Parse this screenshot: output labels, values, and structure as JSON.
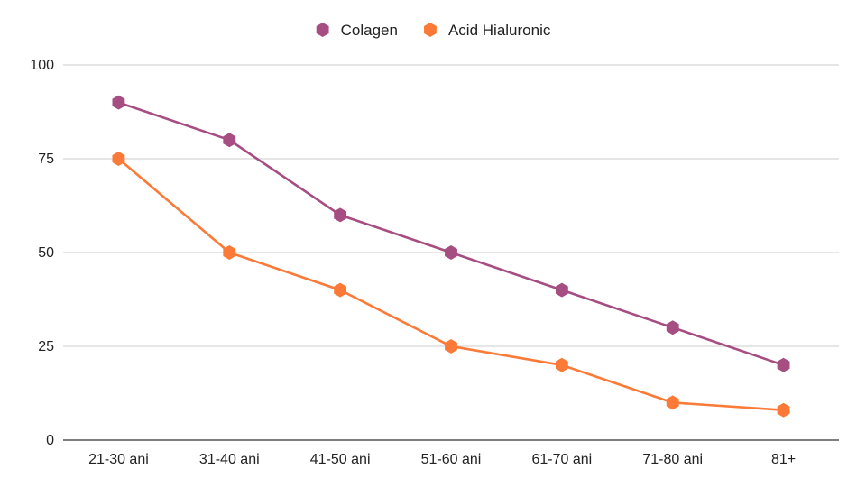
{
  "chart_data": {
    "type": "line",
    "categories": [
      "21-30 ani",
      "31-40 ani",
      "41-50 ani",
      "51-60 ani",
      "61-70 ani",
      "71-80 ani",
      "81+"
    ],
    "series": [
      {
        "name": "Colagen",
        "color": "#a64d82",
        "values": [
          90,
          80,
          60,
          50,
          40,
          30,
          20
        ]
      },
      {
        "name": "Acid Hialuronic",
        "color": "#fb7a37",
        "values": [
          75,
          50,
          40,
          25,
          20,
          10,
          8
        ]
      }
    ],
    "yticks": [
      "0",
      "25",
      "50",
      "75",
      "100"
    ],
    "ylim": [
      0,
      100
    ],
    "grid": true,
    "legend_position": "top-center",
    "marker": "hexagon",
    "title": "",
    "xlabel": "",
    "ylabel": ""
  }
}
